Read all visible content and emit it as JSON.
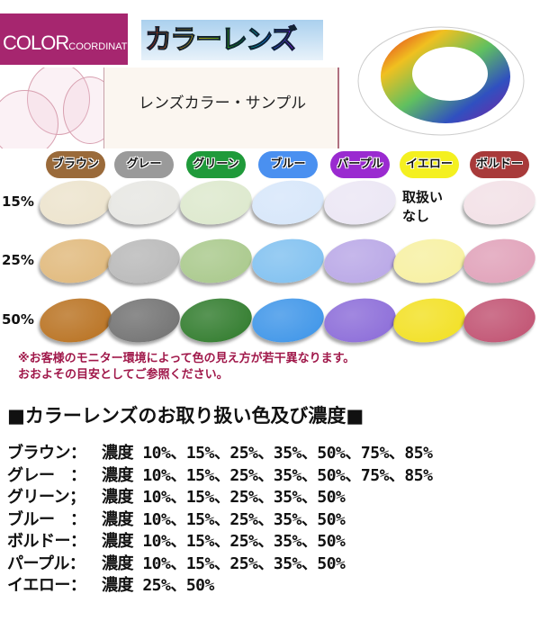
{
  "logo": {
    "big": "COLOR",
    "small": "COORDINATE"
  },
  "banner_title": "カラーレンズ",
  "sample_title": "レンズカラー・サンプル",
  "colors": [
    {
      "label": "ブラウン",
      "chip": "#9a6a3a"
    },
    {
      "label": "グレー",
      "chip": "#9a9a9a"
    },
    {
      "label": "グリーン",
      "chip": "#1f9a3a"
    },
    {
      "label": "ブルー",
      "chip": "#4a90f0"
    },
    {
      "label": "パープル",
      "chip": "#9a2ad0"
    },
    {
      "label": "イエロー",
      "chip": "#f4f020"
    },
    {
      "label": "ボルドー",
      "chip": "#a83a3a"
    }
  ],
  "rows": [
    {
      "pct": "15%",
      "lenses": [
        "#ece3cc",
        "#e6e6e2",
        "#dce8cc",
        "#d6e6fa",
        "#ebe6f4",
        null,
        "#f2e0e6"
      ]
    },
    {
      "pct": "25%",
      "lenses": [
        "#e0b87a",
        "#b8b8b8",
        "#a8c88a",
        "#7fc0f0",
        "#b8a6e6",
        "#f7f0a0",
        "#e0a0b8"
      ]
    },
    {
      "pct": "50%",
      "lenses": [
        "#b8701e",
        "#707070",
        "#2e7a2a",
        "#3c94e8",
        "#8a6ad8",
        "#f2e020",
        "#c05070"
      ]
    }
  ],
  "not_available": [
    "取扱い",
    "なし"
  ],
  "notice": [
    "※お客様のモニター環境によって色の見え方が若干異なります。",
    "おおよその目安としてご参照ください。"
  ],
  "heading": "■カラーレンズのお取り扱い色及び濃度■",
  "list": [
    {
      "name": "ブラウン：",
      "values": "濃度 10%、15%、25%、35%、50%、75%、85%"
    },
    {
      "name": "グレー　：",
      "values": "濃度 10%、15%、25%、35%、50%、75%、85%"
    },
    {
      "name": "グリーン；",
      "values": "濃度 10%、15%、25%、35%、50%"
    },
    {
      "name": "ブルー　：",
      "values": "濃度 10%、15%、25%、35%、50%"
    },
    {
      "name": "ボルドー：",
      "values": "濃度 10%、15%、25%、35%、50%"
    },
    {
      "name": "パープル：",
      "values": "濃度 10%、15%、25%、35%、50%"
    },
    {
      "name": "イエロー：",
      "values": "濃度 25%、50%"
    }
  ]
}
